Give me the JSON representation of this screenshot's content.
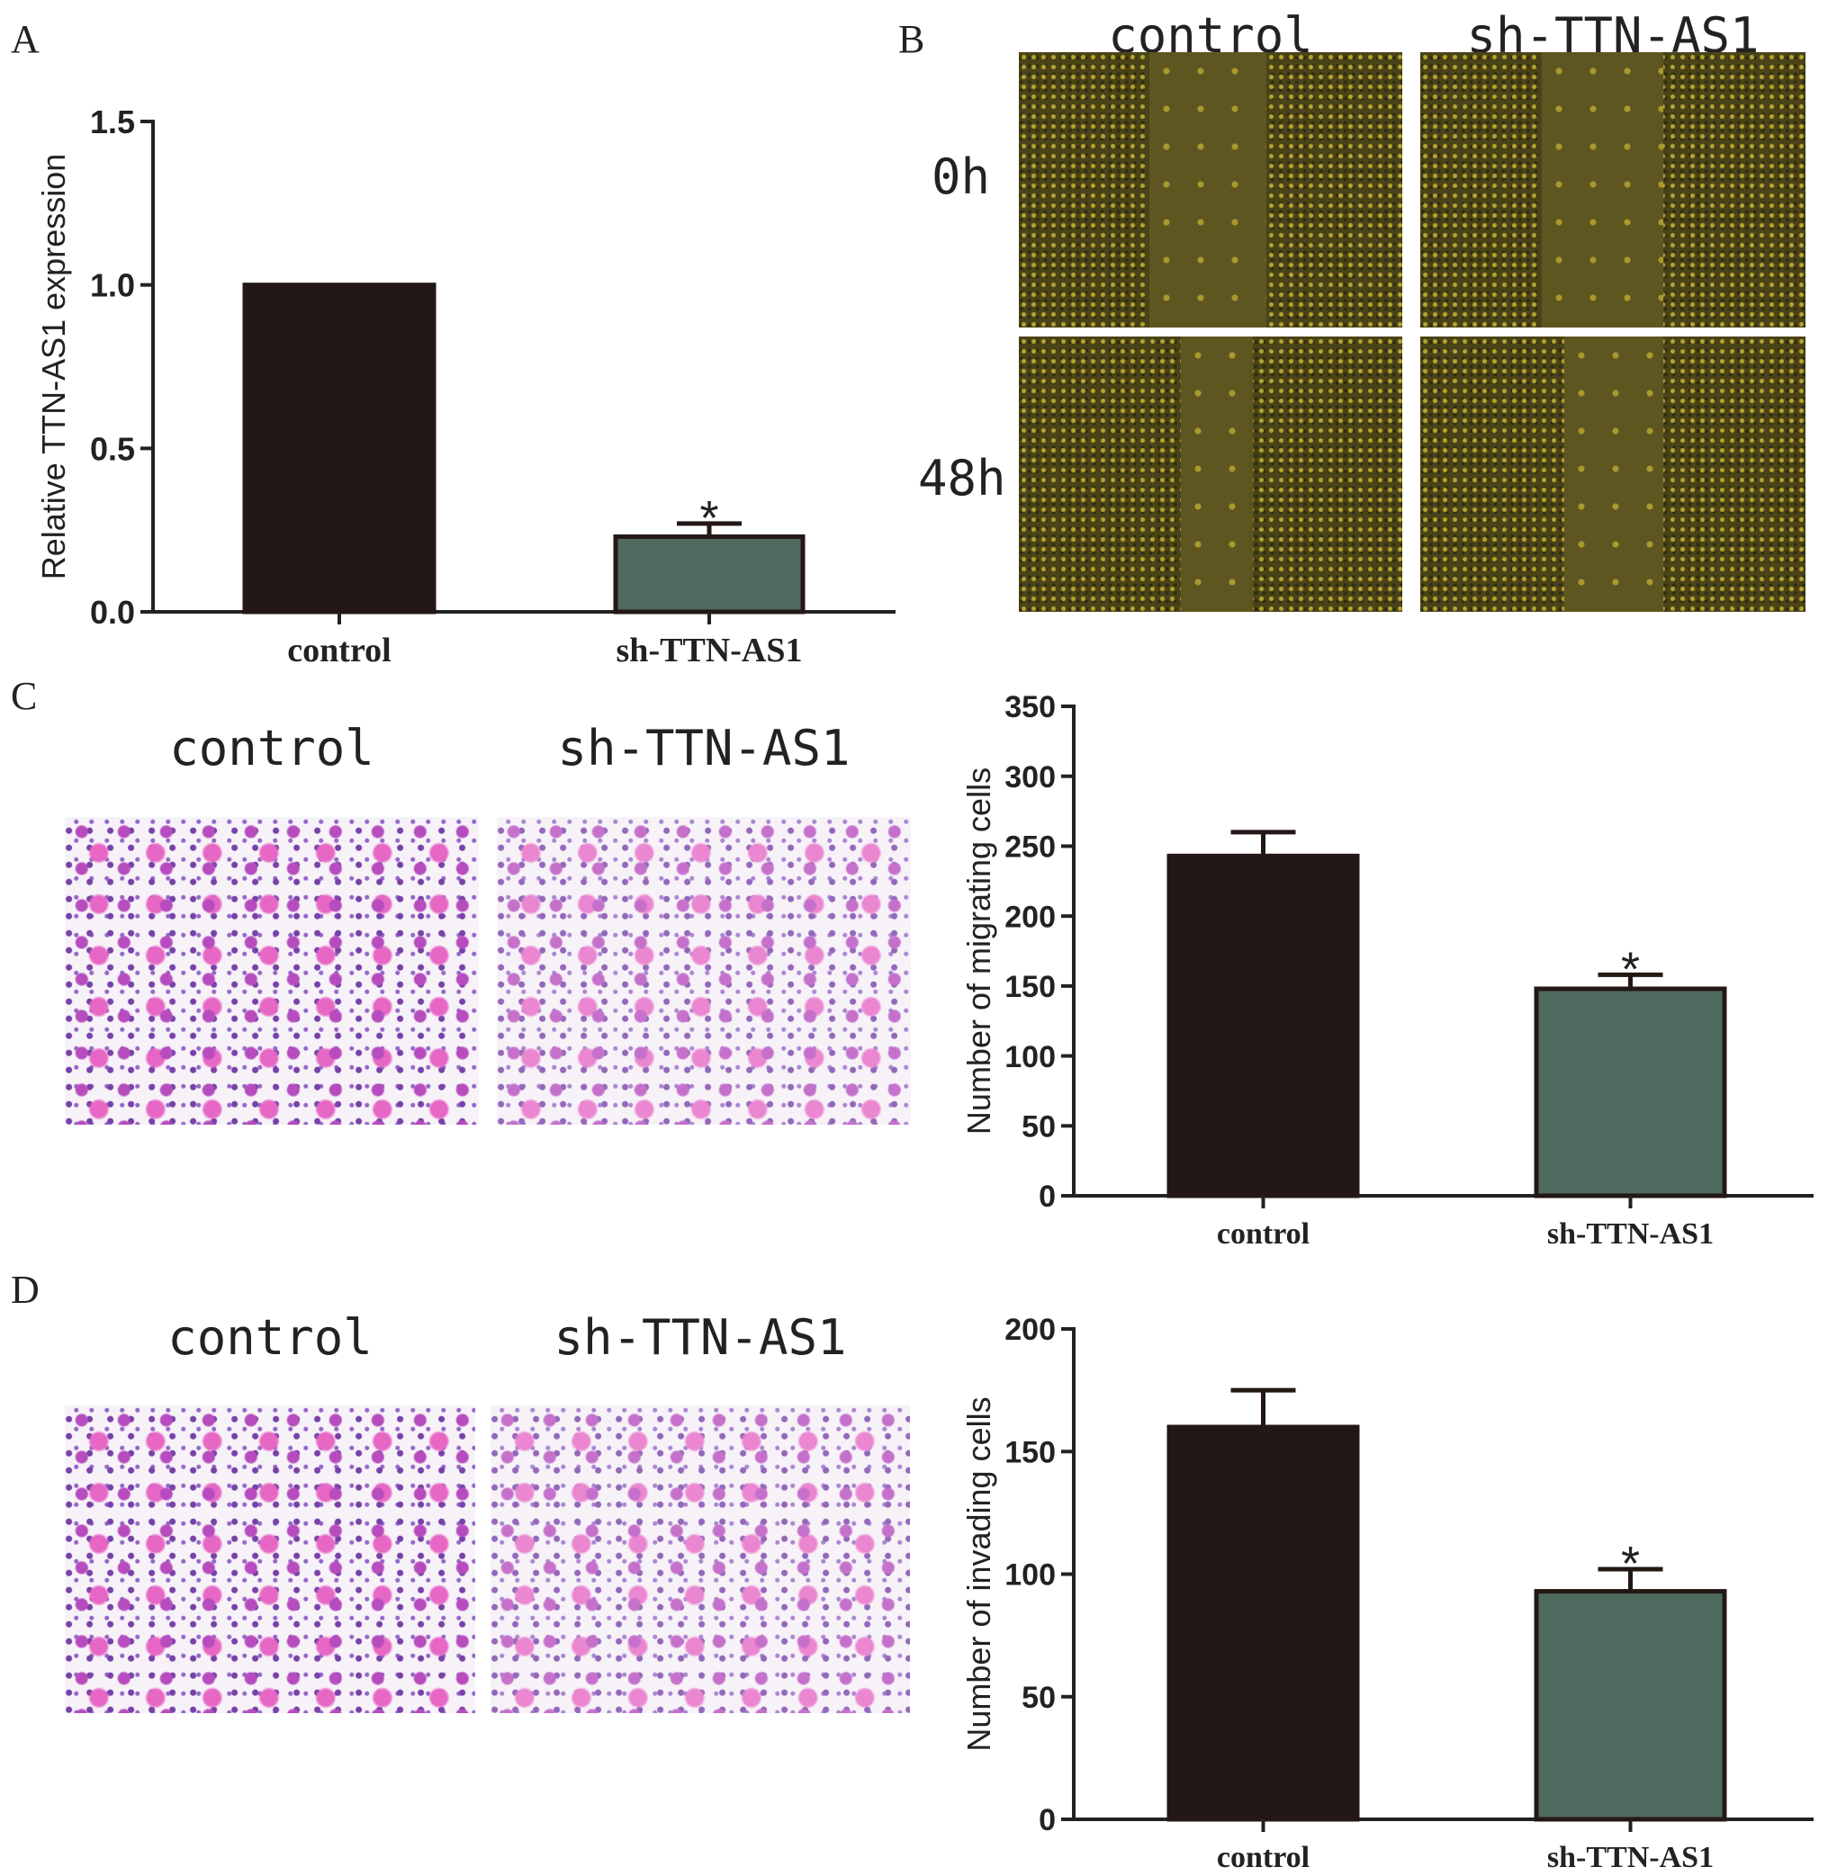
{
  "panels": {
    "A": "A",
    "B": "B",
    "C": "C",
    "D": "D"
  },
  "wound_healing": {
    "columns": [
      "control",
      "sh-TTN-AS1"
    ],
    "rows": [
      "0h",
      "48h"
    ]
  },
  "transwell_migration": {
    "columns": [
      "control",
      "sh-TTN-AS1"
    ]
  },
  "transwell_invasion": {
    "columns": [
      "control",
      "sh-TTN-AS1"
    ]
  },
  "colors": {
    "control_bar": "#231815",
    "knockdown_bar": "#4f6a5e",
    "axis": "#222222"
  },
  "chart_data": [
    {
      "id": "A",
      "type": "bar",
      "categories": [
        "control",
        "sh-TTN-AS1"
      ],
      "values": [
        1.0,
        0.23
      ],
      "errors": [
        0,
        0.04
      ],
      "significance": [
        "",
        "*"
      ],
      "ylabel": "Relative TTN-AS1 expression",
      "ylim": [
        0,
        1.5
      ],
      "yticks": [
        0,
        0.5,
        1.0,
        1.5
      ],
      "ytick_labels": [
        "0.0",
        "0.5",
        "1.0",
        "1.5"
      ],
      "grid": false
    },
    {
      "id": "C",
      "type": "bar",
      "categories": [
        "control",
        "sh-TTN-AS1"
      ],
      "values": [
        243,
        148
      ],
      "errors": [
        17,
        10
      ],
      "significance": [
        "",
        "*"
      ],
      "ylabel": "Number of migrating cells",
      "ylim": [
        0,
        350
      ],
      "yticks": [
        0,
        50,
        100,
        150,
        200,
        250,
        300,
        350
      ],
      "ytick_labels": [
        "0",
        "50",
        "100",
        "150",
        "200",
        "250",
        "300",
        "350"
      ],
      "grid": false
    },
    {
      "id": "D",
      "type": "bar",
      "categories": [
        "control",
        "sh-TTN-AS1"
      ],
      "values": [
        160,
        93
      ],
      "errors": [
        15,
        9
      ],
      "significance": [
        "",
        "*"
      ],
      "ylabel": "Number of invading cells",
      "ylim": [
        0,
        200
      ],
      "yticks": [
        0,
        50,
        100,
        150,
        200
      ],
      "ytick_labels": [
        "0",
        "50",
        "100",
        "150",
        "200"
      ],
      "grid": false
    }
  ]
}
